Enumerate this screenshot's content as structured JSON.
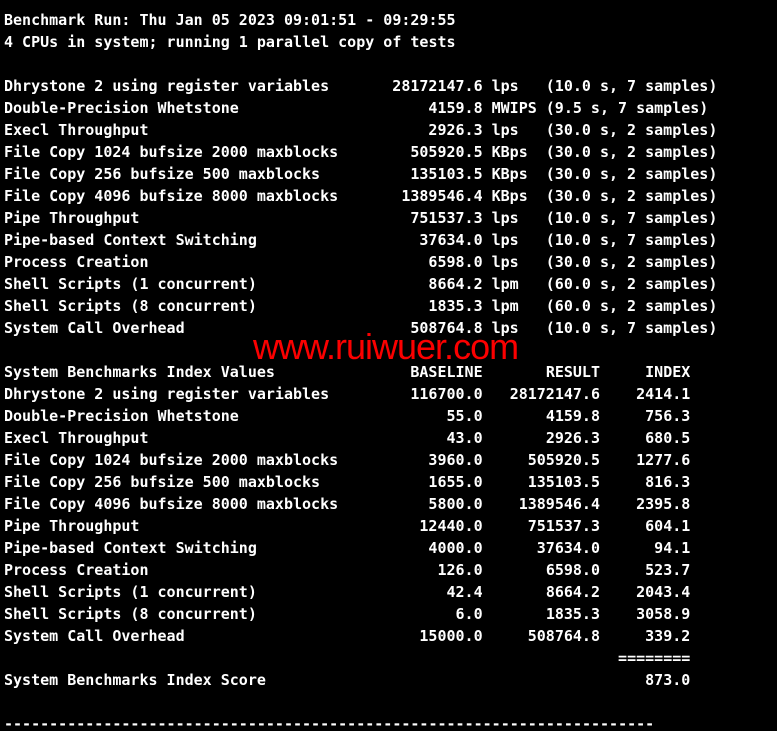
{
  "colors": {
    "background": "#000000",
    "foreground": "#ffffff",
    "watermark_red": "#fb0000",
    "dim_separator": "#5a5561"
  },
  "watermark": {
    "text": "www.ruiwuer.com"
  },
  "separators": {
    "top": "------------------------------------------------------------------------",
    "bottom": "------------------------------------------------------------------------"
  },
  "header": {
    "run_line": "Benchmark Run: Thu Jan 05 2023 09:01:51 - 09:29:55",
    "system_line": "4 CPUs in system; running 1 parallel copy of tests"
  },
  "results": {
    "rows": [
      {
        "name": "Dhrystone 2 using register variables",
        "value": "28172147.6",
        "unit": "lps",
        "note": "(10.0 s, 7 samples)"
      },
      {
        "name": "Double-Precision Whetstone",
        "value": "4159.8",
        "unit": "MWIPS",
        "note": "(9.5 s, 7 samples)"
      },
      {
        "name": "Execl Throughput",
        "value": "2926.3",
        "unit": "lps",
        "note": "(30.0 s, 2 samples)"
      },
      {
        "name": "File Copy 1024 bufsize 2000 maxblocks",
        "value": "505920.5",
        "unit": "KBps",
        "note": "(30.0 s, 2 samples)"
      },
      {
        "name": "File Copy 256 bufsize 500 maxblocks",
        "value": "135103.5",
        "unit": "KBps",
        "note": "(30.0 s, 2 samples)"
      },
      {
        "name": "File Copy 4096 bufsize 8000 maxblocks",
        "value": "1389546.4",
        "unit": "KBps",
        "note": "(30.0 s, 2 samples)"
      },
      {
        "name": "Pipe Throughput",
        "value": "751537.3",
        "unit": "lps",
        "note": "(10.0 s, 7 samples)"
      },
      {
        "name": "Pipe-based Context Switching",
        "value": "37634.0",
        "unit": "lps",
        "note": "(10.0 s, 7 samples)"
      },
      {
        "name": "Process Creation",
        "value": "6598.0",
        "unit": "lps",
        "note": "(30.0 s, 2 samples)"
      },
      {
        "name": "Shell Scripts (1 concurrent)",
        "value": "8664.2",
        "unit": "lpm",
        "note": "(60.0 s, 2 samples)"
      },
      {
        "name": "Shell Scripts (8 concurrent)",
        "value": "1835.3",
        "unit": "lpm",
        "note": "(60.0 s, 2 samples)"
      },
      {
        "name": "System Call Overhead",
        "value": "508764.8",
        "unit": "lps",
        "note": "(10.0 s, 7 samples)"
      }
    ]
  },
  "index_table": {
    "title": "System Benchmarks Index Values",
    "col_baseline": "BASELINE",
    "col_result": "RESULT",
    "col_index": "INDEX",
    "rows": [
      {
        "name": "Dhrystone 2 using register variables",
        "baseline": "116700.0",
        "result": "28172147.6",
        "index": "2414.1"
      },
      {
        "name": "Double-Precision Whetstone",
        "baseline": "55.0",
        "result": "4159.8",
        "index": "756.3"
      },
      {
        "name": "Execl Throughput",
        "baseline": "43.0",
        "result": "2926.3",
        "index": "680.5"
      },
      {
        "name": "File Copy 1024 bufsize 2000 maxblocks",
        "baseline": "3960.0",
        "result": "505920.5",
        "index": "1277.6"
      },
      {
        "name": "File Copy 256 bufsize 500 maxblocks",
        "baseline": "1655.0",
        "result": "135103.5",
        "index": "816.3"
      },
      {
        "name": "File Copy 4096 bufsize 8000 maxblocks",
        "baseline": "5800.0",
        "result": "1389546.4",
        "index": "2395.8"
      },
      {
        "name": "Pipe Throughput",
        "baseline": "12440.0",
        "result": "751537.3",
        "index": "604.1"
      },
      {
        "name": "Pipe-based Context Switching",
        "baseline": "4000.0",
        "result": "37634.0",
        "index": "94.1"
      },
      {
        "name": "Process Creation",
        "baseline": "126.0",
        "result": "6598.0",
        "index": "523.7"
      },
      {
        "name": "Shell Scripts (1 concurrent)",
        "baseline": "42.4",
        "result": "8664.2",
        "index": "2043.4"
      },
      {
        "name": "Shell Scripts (8 concurrent)",
        "baseline": "6.0",
        "result": "1835.3",
        "index": "3058.9"
      },
      {
        "name": "System Call Overhead",
        "baseline": "15000.0",
        "result": "508764.8",
        "index": "339.2"
      }
    ],
    "index_rule": "========",
    "score_label": "System Benchmarks Index Score",
    "score": "873.0"
  }
}
